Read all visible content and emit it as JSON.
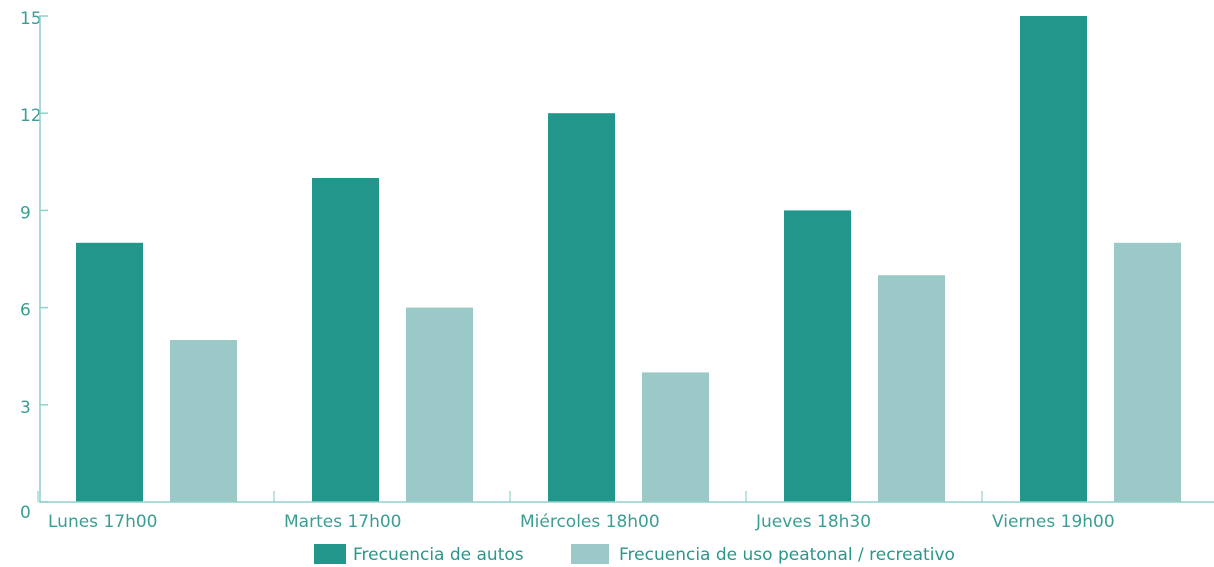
{
  "colors": {
    "autos": "#23968c",
    "peatonal": "#9bc9c8",
    "axis": "#8fd1cc",
    "text": "#3a9e95"
  },
  "legend": {
    "autos": "Frecuencia de autos",
    "peatonal": "Frecuencia de uso peatonal / recreativo"
  },
  "chart_data": {
    "type": "bar",
    "title": "",
    "xlabel": "",
    "ylabel": "",
    "categories": [
      "Lunes 17h00",
      "Martes 17h00",
      "Miércoles 18h00",
      "Jueves 18h30",
      "Viernes 19h00"
    ],
    "series": [
      {
        "name": "Frecuencia de autos",
        "values": [
          8,
          10,
          12,
          9,
          15
        ]
      },
      {
        "name": "Frecuencia de uso peatonal / recreativo",
        "values": [
          5,
          6,
          4,
          7,
          8
        ]
      }
    ],
    "ylim": [
      0,
      15
    ],
    "yticks": [
      "0",
      "3",
      "6",
      "9",
      "12",
      "15"
    ],
    "grid": false,
    "legend_position": "bottom-center"
  }
}
